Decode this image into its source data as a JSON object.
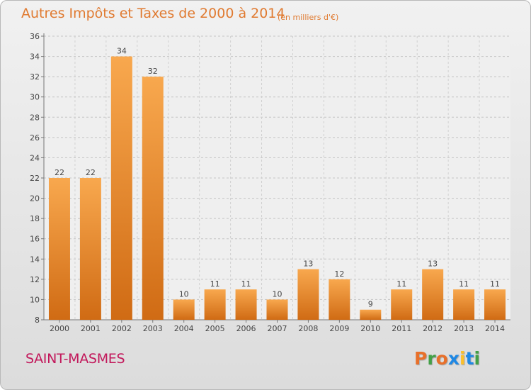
{
  "header": {
    "title": "Autres Impôts et Taxes de 2000 à 2014",
    "unit": "(en milliers d'€)"
  },
  "footer": {
    "commune": "SAINT-MASMES",
    "brand": "Proxiti"
  },
  "colors": {
    "bar_light": "#f8a84e",
    "bar_dark": "#d06b14",
    "title": "#e07a30",
    "commune": "#c2185b",
    "brand_letters": [
      "#e8702a",
      "#43a047",
      "#e8702a",
      "#1e88e5",
      "#fbc02d",
      "#1e88e5",
      "#43a047"
    ]
  },
  "chart_data": {
    "type": "bar",
    "title": "Autres Impôts et Taxes de 2000 à 2014",
    "subtitle": "(en milliers d'€)",
    "xlabel": "",
    "ylabel": "",
    "categories": [
      "2000",
      "2001",
      "2002",
      "2003",
      "2004",
      "2005",
      "2006",
      "2007",
      "2008",
      "2009",
      "2010",
      "2011",
      "2012",
      "2013",
      "2014"
    ],
    "values": [
      22,
      22,
      34,
      32,
      10,
      11,
      11,
      10,
      13,
      12,
      9,
      11,
      13,
      11,
      11
    ],
    "ylim": [
      8,
      36
    ],
    "yticks": [
      8,
      10,
      12,
      14,
      16,
      18,
      20,
      22,
      24,
      26,
      28,
      30,
      32,
      34,
      36
    ],
    "grid": true,
    "data_labels": true
  }
}
